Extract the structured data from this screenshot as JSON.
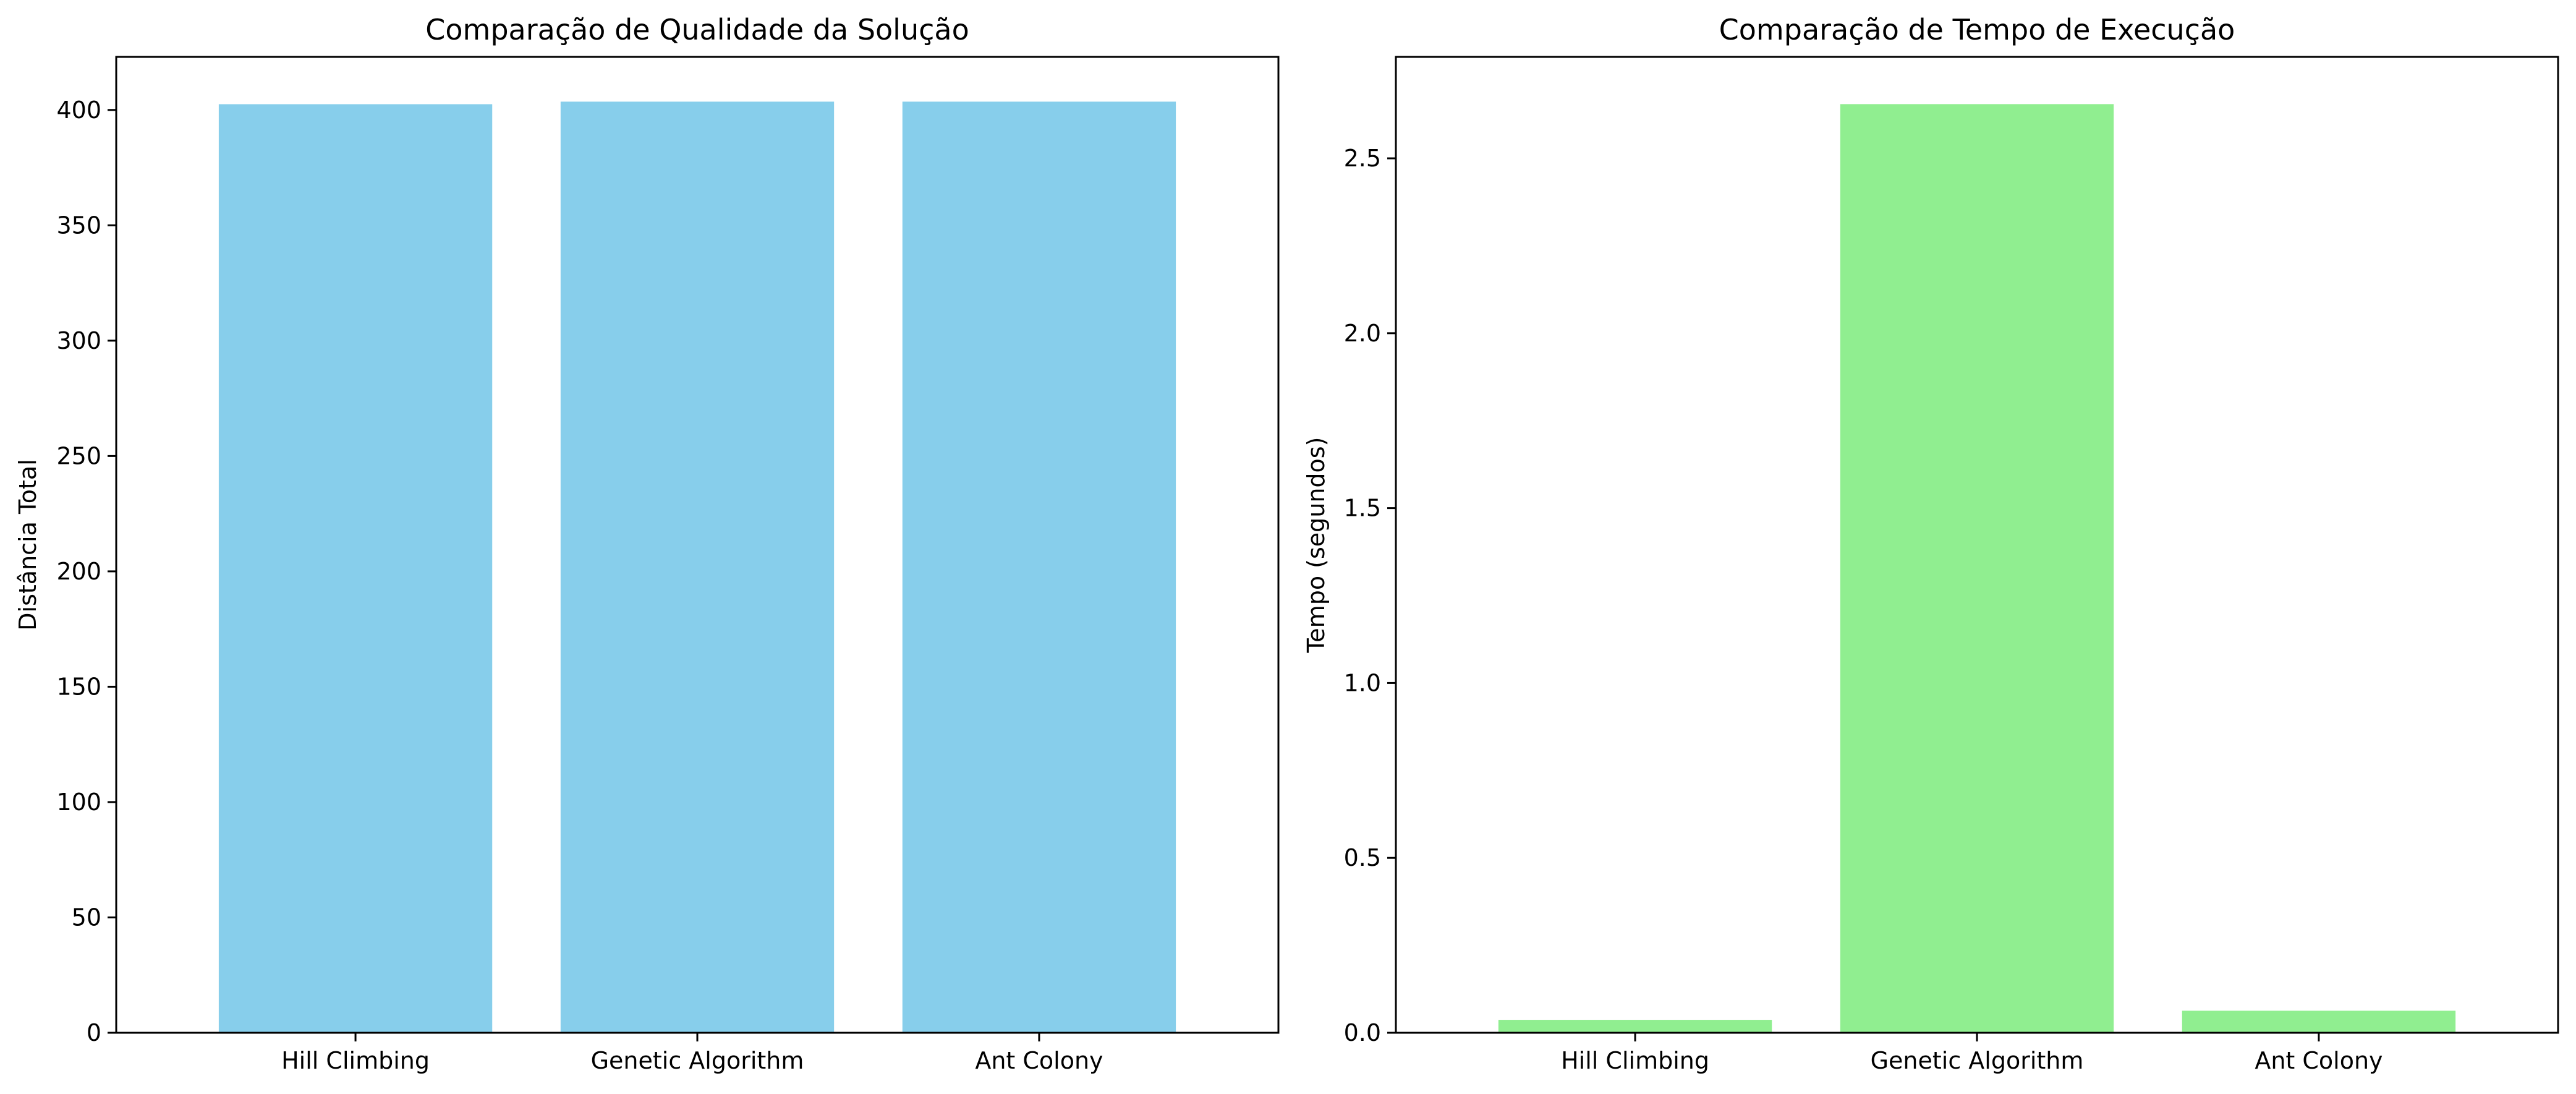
{
  "chart_data": [
    {
      "type": "bar",
      "title": "Comparação de Qualidade da Solução",
      "xlabel": "",
      "ylabel": "Distância Total",
      "categories": [
        "Hill Climbing",
        "Genetic Algorithm",
        "Ant Colony"
      ],
      "values": [
        402.5,
        403.6,
        403.6
      ],
      "ylim": [
        0,
        423
      ],
      "yticks": [
        0,
        50,
        100,
        150,
        200,
        250,
        300,
        350,
        400
      ],
      "ytick_labels": [
        "0",
        "50",
        "100",
        "150",
        "200",
        "250",
        "300",
        "350",
        "400"
      ],
      "bar_color": "#87CEEB",
      "grid": false,
      "legend": "none"
    },
    {
      "type": "bar",
      "title": "Comparação de Tempo de Execução",
      "xlabel": "",
      "ylabel": "Tempo (segundos)",
      "categories": [
        "Hill Climbing",
        "Genetic Algorithm",
        "Ant Colony"
      ],
      "values": [
        0.037,
        2.655,
        0.063
      ],
      "ylim": [
        0,
        2.79
      ],
      "yticks": [
        0,
        0.5,
        1.0,
        1.5,
        2.0,
        2.5
      ],
      "ytick_labels": [
        "0.0",
        "0.5",
        "1.0",
        "1.5",
        "2.0",
        "2.5"
      ],
      "bar_color": "#90EE90",
      "grid": false,
      "legend": "none"
    }
  ]
}
